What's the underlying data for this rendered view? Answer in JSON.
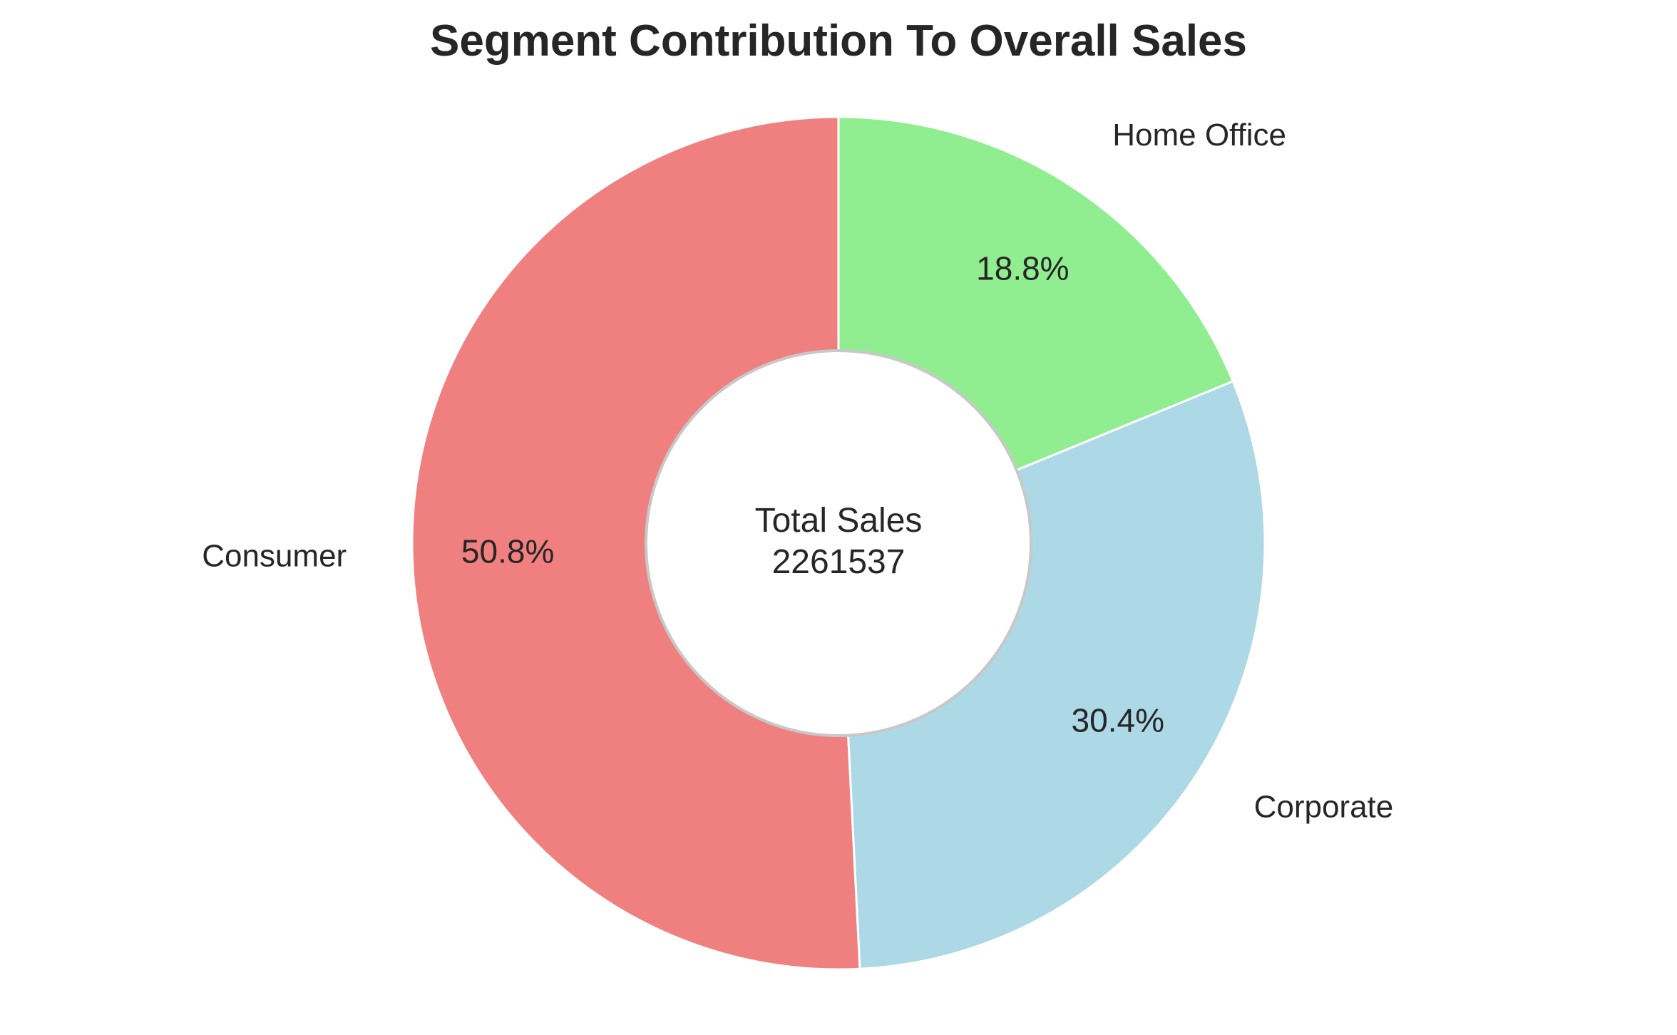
{
  "chart_data": {
    "type": "pie",
    "title": "Segment Contribution To Overall Sales",
    "categories": [
      "Consumer",
      "Corporate",
      "Home Office"
    ],
    "values": [
      50.8,
      30.4,
      18.8
    ],
    "value_labels": [
      "50.8%",
      "30.4%",
      "18.8%"
    ],
    "colors": [
      "#F08080",
      "#ADD8E6",
      "#90EE90"
    ],
    "start_angle_deg": 90,
    "direction": "counterclockwise",
    "donut": true,
    "center_text": {
      "line1": "Total Sales",
      "line2": "2261537"
    },
    "hole_fill": "#ffffff",
    "hole_stroke": "#c8c8c8",
    "wedge_edge_color": "#ffffff"
  }
}
